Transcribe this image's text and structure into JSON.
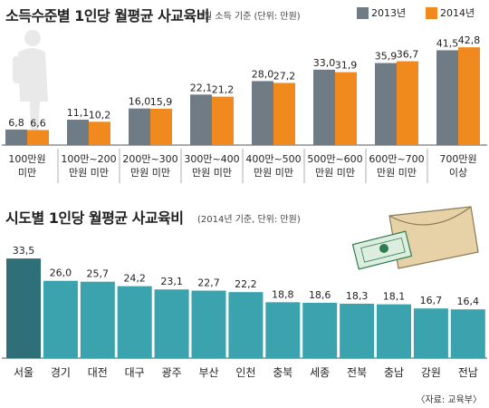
{
  "chart_data": [
    {
      "type": "bar",
      "title": "소득수준별 1인당 월평균 사교육비",
      "note": "*월 소득 기준 (단위: 만원)",
      "categories": [
        "100만원 미만",
        "100만~200 만원 미만",
        "200만~300 만원 미만",
        "300만~400 만원 미만",
        "400만~500 만원 미만",
        "500만~600 만원 미만",
        "600만~700 만원 미만",
        "700만원 이상"
      ],
      "category_lines": [
        [
          "100만원",
          "미만"
        ],
        [
          "100만~200",
          "만원 미만"
        ],
        [
          "200만~300",
          "만원 미만"
        ],
        [
          "300만~400",
          "만원 미만"
        ],
        [
          "400만~500",
          "만원 미만"
        ],
        [
          "500만~600",
          "만원 미만"
        ],
        [
          "600만~700",
          "만원 미만"
        ],
        [
          "700만원",
          "이상"
        ]
      ],
      "series": [
        {
          "name": "2013년",
          "color": "#6f7c86",
          "values": [
            6.8,
            11.1,
            16.0,
            22.1,
            28.0,
            33.0,
            35.9,
            41.5
          ],
          "labels": [
            "6,8",
            "11,1",
            "16,0",
            "22,1",
            "28,0",
            "33,0",
            "35,9",
            "41,5"
          ]
        },
        {
          "name": "2014년",
          "color": "#f08a1e",
          "values": [
            6.6,
            10.2,
            15.9,
            21.2,
            27.2,
            31.9,
            36.7,
            42.8
          ],
          "labels": [
            "6,6",
            "10,2",
            "15,9",
            "21,2",
            "27,2",
            "31,9",
            "36,7",
            "42,8"
          ]
        }
      ],
      "ylim": [
        0,
        45
      ],
      "legend": "top-right"
    },
    {
      "type": "bar",
      "title": "시도별 1인당 월평균 사교육비",
      "note": "(2014년 기준, 단위: 만원)",
      "categories": [
        "서울",
        "경기",
        "대전",
        "대구",
        "광주",
        "부산",
        "인천",
        "충북",
        "세종",
        "전북",
        "충남",
        "강원",
        "전남"
      ],
      "values": [
        33.5,
        26.0,
        25.7,
        24.2,
        23.1,
        22.7,
        22.2,
        18.8,
        18.6,
        18.3,
        18.1,
        16.7,
        16.4
      ],
      "labels": [
        "33,5",
        "26,0",
        "25,7",
        "24,2",
        "23,1",
        "22,7",
        "22,2",
        "18,8",
        "18,6",
        "18,3",
        "18,1",
        "16,7",
        "16,4"
      ],
      "highlight_color": "#2e6f78",
      "bar_color": "#3aa3ad",
      "ylim": [
        0,
        34
      ]
    }
  ],
  "source": "〈자료: 교육부〉"
}
